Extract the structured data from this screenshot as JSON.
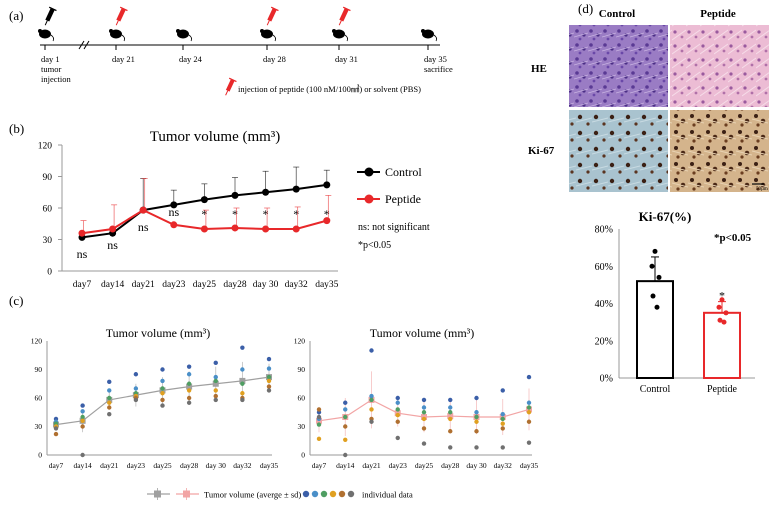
{
  "panel_labels": {
    "a": "(a)",
    "b": "(b)",
    "c": "(c)",
    "d": "(d)"
  },
  "timeline": {
    "events": [
      {
        "day": 1,
        "label_lines": [
          "day 1",
          "tumor",
          "injection"
        ],
        "injection": false
      },
      {
        "day": 21,
        "label_lines": [
          "day 21"
        ],
        "injection": true
      },
      {
        "day": 24,
        "label_lines": [
          "day 24"
        ],
        "injection": false
      },
      {
        "day": 28,
        "label_lines": [
          "day 28"
        ],
        "injection": true
      },
      {
        "day": 31,
        "label_lines": [
          "day 31"
        ],
        "injection": true
      },
      {
        "day": 35,
        "label_lines": [
          "day 35",
          "sacrifice"
        ],
        "injection": false
      }
    ],
    "legend": "injection of peptide (100 nM/100㎣) or solvent (PBS)",
    "colors": {
      "injection": "#e8282a",
      "mouse": "#000000"
    }
  },
  "chart_data": [
    {
      "id": "b",
      "type": "line",
      "title": "Tumor volume (mm³)",
      "categories": [
        "day7",
        "day14",
        "day21",
        "day23",
        "day25",
        "day28",
        "day 30",
        "day32",
        "day35"
      ],
      "ylim": [
        0,
        120
      ],
      "yticks": [
        0,
        30,
        60,
        90,
        120
      ],
      "series": [
        {
          "name": "Control",
          "color": "#000000",
          "values": [
            32,
            36,
            58,
            63,
            68,
            72,
            75,
            78,
            82
          ],
          "sd": [
            4,
            4,
            30,
            14,
            15,
            17,
            20,
            21,
            14
          ]
        },
        {
          "name": "Peptide",
          "color": "#e8282a",
          "values": [
            36,
            40,
            58,
            44,
            40,
            41,
            40,
            40,
            48
          ],
          "sd": [
            12,
            23,
            30,
            0,
            18,
            19,
            20,
            21,
            24
          ]
        }
      ],
      "significance": [
        "ns",
        "ns",
        "ns",
        "ns",
        "*",
        "*",
        "*",
        "*",
        "*"
      ],
      "notes": [
        "ns: not significant",
        "*p<0.05"
      ]
    },
    {
      "id": "c-left",
      "type": "scatter",
      "title": "Tumor volume (mm³)",
      "categories": [
        "day7",
        "day14",
        "day21",
        "day23",
        "day25",
        "day28",
        "day 30",
        "day32",
        "day35"
      ],
      "ylim": [
        0,
        120
      ],
      "yticks": [
        0,
        30,
        60,
        90,
        120
      ],
      "mean": [
        32,
        36,
        58,
        63,
        68,
        72,
        75,
        78,
        82
      ],
      "sd": [
        4,
        12,
        10,
        12,
        14,
        16,
        18,
        20,
        14
      ],
      "mean_color": "#a0a0a0",
      "points": [
        [
          38,
          35,
          33,
          30,
          22,
          28
        ],
        [
          52,
          46,
          40,
          36,
          30,
          0
        ],
        [
          77,
          68,
          60,
          55,
          50,
          43
        ],
        [
          85,
          70,
          65,
          62,
          60,
          58
        ],
        [
          90,
          78,
          70,
          65,
          58,
          52
        ],
        [
          93,
          85,
          75,
          68,
          60,
          55
        ],
        [
          97,
          82,
          78,
          68,
          62,
          58
        ],
        [
          113,
          90,
          75,
          65,
          60,
          58
        ],
        [
          101,
          91,
          82,
          78,
          72,
          68
        ]
      ]
    },
    {
      "id": "c-right",
      "type": "scatter",
      "title": "Tumor volume (mm³)",
      "categories": [
        "day7",
        "day14",
        "day21",
        "day23",
        "day25",
        "day28",
        "day 30",
        "day32",
        "day35"
      ],
      "ylim": [
        0,
        120
      ],
      "yticks": [
        0,
        30,
        60,
        90,
        120
      ],
      "mean": [
        36,
        40,
        58,
        44,
        40,
        41,
        40,
        40,
        48
      ],
      "sd": [
        12,
        20,
        30,
        14,
        16,
        17,
        18,
        19,
        22
      ],
      "mean_color": "#f2a5a5",
      "points": [
        [
          45,
          38,
          32,
          17,
          48,
          40
        ],
        [
          55,
          48,
          40,
          16,
          30,
          0
        ],
        [
          110,
          62,
          58,
          48,
          38,
          35
        ],
        [
          60,
          55,
          48,
          42,
          35,
          18
        ],
        [
          58,
          50,
          45,
          38,
          28,
          12
        ],
        [
          58,
          50,
          45,
          38,
          25,
          8
        ],
        [
          60,
          45,
          40,
          35,
          25,
          8
        ],
        [
          68,
          43,
          38,
          33,
          28,
          8
        ],
        [
          82,
          55,
          50,
          45,
          35,
          13
        ]
      ]
    },
    {
      "id": "d",
      "type": "bar",
      "title": "Ki-67(%)",
      "categories": [
        "Control",
        "Peptide"
      ],
      "values": [
        52,
        35
      ],
      "sd": [
        13,
        6
      ],
      "ylim": [
        0,
        80
      ],
      "yticks": [
        "0%",
        "20%",
        "40%",
        "60%",
        "80%"
      ],
      "colors": [
        "#000000",
        "#e8282a"
      ],
      "points": [
        [
          68,
          60,
          54,
          44,
          38
        ],
        [
          42,
          38,
          35,
          31,
          30
        ]
      ],
      "significance": [
        "",
        "*"
      ],
      "note": "*p<0.05"
    }
  ],
  "scatter_colors": [
    "#3b5fa8",
    "#4a8fc8",
    "#4f9e62",
    "#e0a020",
    "#b07030",
    "#707070"
  ],
  "legend_c": {
    "avg": "Tumor volume (averge ± sd)",
    "ind": "individual data"
  },
  "histology": {
    "col_labels": [
      "Control",
      "Peptide"
    ],
    "row_labels": [
      "HE",
      "Ki-67"
    ],
    "scale": "50µm",
    "colors": {
      "he_control": "#8f6ab8",
      "he_peptide": "#e5a9c8",
      "ki_control": "#9bb7c4",
      "ki_peptide": "#c9a67e",
      "nuclei": "#3b2014"
    }
  }
}
